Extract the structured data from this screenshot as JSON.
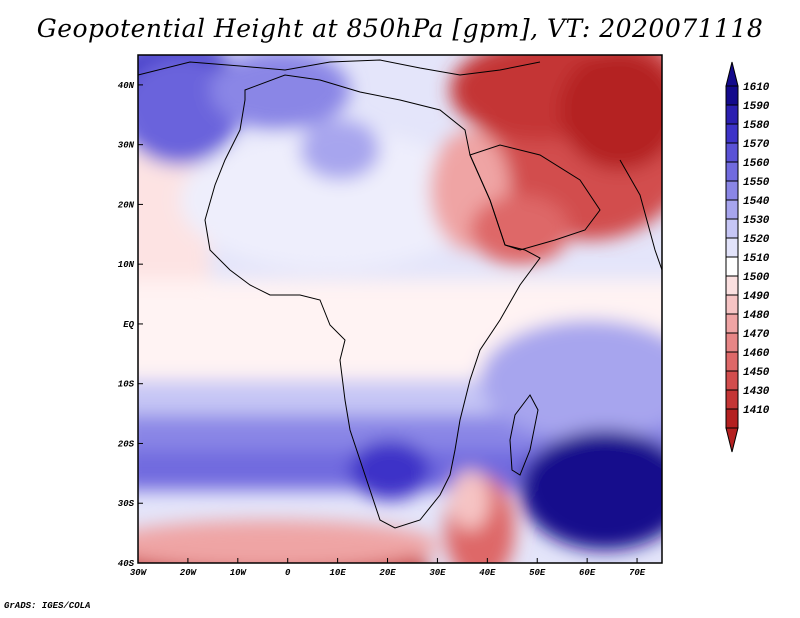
{
  "title": "Geopotential Height at 850hPa [gpm], VT: 2020071118",
  "credit": "GrADS: IGES/COLA",
  "map": {
    "lat_labels": [
      "40N",
      "30N",
      "20N",
      "10N",
      "EQ",
      "10S",
      "20S",
      "30S",
      "40S"
    ],
    "lon_labels": [
      "30W",
      "20W",
      "10W",
      "0",
      "10E",
      "20E",
      "30E",
      "40E",
      "50E",
      "60E",
      "70E"
    ],
    "lon_range": [
      -30,
      75
    ],
    "lat_range": [
      -40,
      45
    ]
  },
  "colorbar": {
    "levels": [
      "1610",
      "1590",
      "1580",
      "1570",
      "1560",
      "1550",
      "1540",
      "1530",
      "1520",
      "1510",
      "1500",
      "1490",
      "1480",
      "1470",
      "1460",
      "1450",
      "1430",
      "1410"
    ],
    "colors": [
      "#140a8c",
      "#2b1fb0",
      "#3d33c8",
      "#5a52d6",
      "#716bdf",
      "#8a86e6",
      "#a7a5ee",
      "#c6c6f5",
      "#e2e3fa",
      "#ffffff",
      "#fbe0e0",
      "#f6c4c4",
      "#efa4a4",
      "#e78686",
      "#de6868",
      "#d24d4d",
      "#c43535",
      "#b42020"
    ]
  }
}
